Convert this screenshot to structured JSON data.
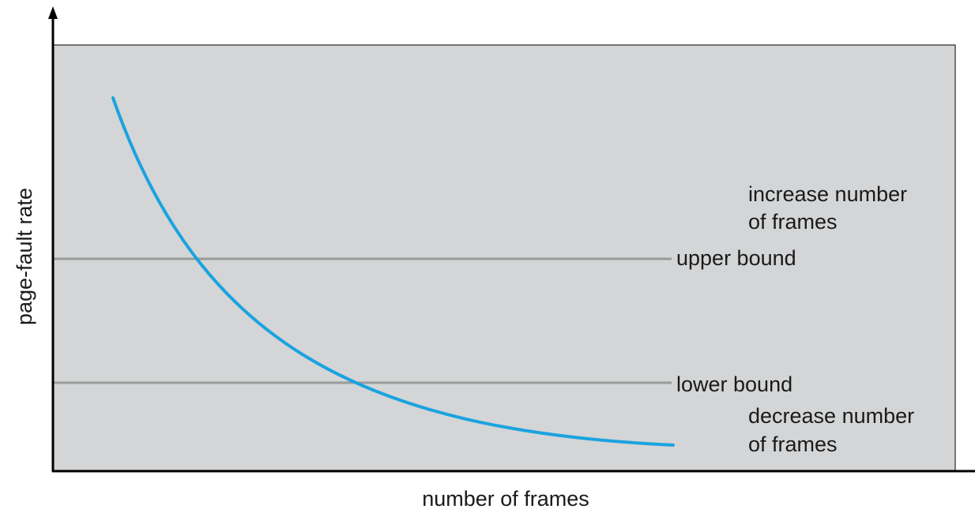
{
  "axes": {
    "y_label": "page-fault rate",
    "x_label": "number of frames"
  },
  "bounds": {
    "upper_label": "upper bound",
    "lower_label": "lower bound"
  },
  "regions": {
    "above_line1": "increase number",
    "above_line2": "of frames",
    "below_line1": "decrease number",
    "below_line2": "of frames"
  },
  "colors": {
    "plot_background": "#d4d5d6",
    "curve": "#1aa3e0",
    "bound_lines": "#9a9a9a",
    "axes": "#000000"
  }
}
